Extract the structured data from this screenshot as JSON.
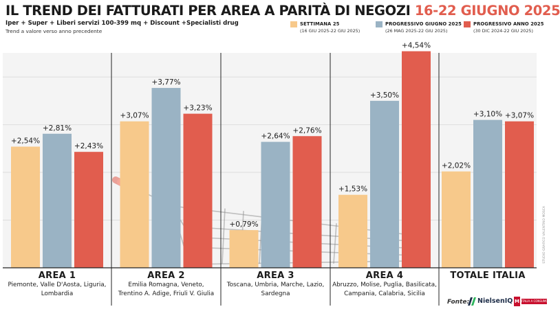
{
  "header": {
    "title_main": "IL TREND DEI FATTURATI PER AREA A PARITÀ DI NEGOZI",
    "title_date": "16-22 GIUGNO 2025",
    "subtitle": "Iper + Super + Liberi servizi 100-399 mq + Discount +Specialisti drug",
    "note": "Trend a valore verso anno precedente"
  },
  "legend": [
    {
      "label": "SETTIMANA 25",
      "sub": "(16 GIU 2025-22 GIU 2025)",
      "color": "#f7c98b"
    },
    {
      "label": "PROGRESSIVO GIUGNO 2025",
      "sub": "(26 MAG 2025-22 GIU 2025)",
      "color": "#9ab3c4"
    },
    {
      "label": "PROGRESSIVO ANNO 2025",
      "sub": "(30 DIC 2024-22 GIU 2025)",
      "color": "#e15d4e"
    }
  ],
  "chart_data": {
    "type": "bar",
    "categories": [
      "AREA 1",
      "AREA 2",
      "AREA 3",
      "AREA 4",
      "TOTALE ITALIA"
    ],
    "category_regions": [
      [
        "Piemonte, Valle D'Aosta, Liguria,",
        "Lombardia"
      ],
      [
        "Emilia Romagna, Veneto,",
        "Trentino A. Adige, Friuli V. Giulia"
      ],
      [
        "Toscana, Umbria, Marche, Lazio,",
        "Sardegna"
      ],
      [
        "Abruzzo, Molise, Puglia, Basilicata,",
        "Campania, Calabria, Sicilia"
      ],
      []
    ],
    "series": [
      {
        "name": "SETTIMANA 25",
        "values": [
          2.54,
          3.07,
          0.79,
          1.53,
          2.02
        ],
        "labels": [
          "+2,54%",
          "+3,07%",
          "+0,79%",
          "+1,53%",
          "+2,02%"
        ],
        "color": "#f7c98b"
      },
      {
        "name": "PROGRESSIVO GIUGNO 2025",
        "values": [
          2.81,
          3.77,
          2.64,
          3.5,
          3.1
        ],
        "labels": [
          "+2,81%",
          "+3,77%",
          "+2,64%",
          "+3,50%",
          "+3,10%"
        ],
        "color": "#9ab3c4"
      },
      {
        "name": "PROGRESSIVO ANNO 2025",
        "values": [
          2.43,
          3.23,
          2.76,
          4.54,
          3.07
        ],
        "labels": [
          "+2,43%",
          "+3,23%",
          "+2,76%",
          "+4,54%",
          "+3,07%"
        ],
        "color": "#e15d4e"
      }
    ],
    "ylim": [
      0,
      4.75
    ],
    "grid": true,
    "legend_position": "top-right"
  },
  "credit": "STUDIO GRAFICO VALENTINO MOSCA",
  "footer": {
    "source_label": "Fonte:",
    "source_name": "NielsenIQ",
    "publisher_mark": "M",
    "publisher_name": "ITALIA A CONSUMO"
  }
}
